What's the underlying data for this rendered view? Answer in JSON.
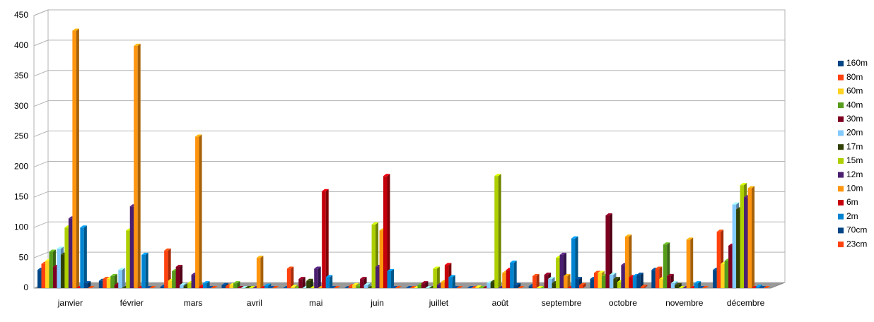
{
  "chart_data": {
    "type": "bar3d",
    "categories": [
      "janvier",
      "février",
      "mars",
      "avril",
      "mai",
      "juin",
      "juillet",
      "août",
      "septembre",
      "octobre",
      "novembre",
      "décembre"
    ],
    "ylim": [
      0,
      450
    ],
    "yticks": [
      0,
      50,
      100,
      150,
      200,
      250,
      300,
      350,
      400,
      450
    ],
    "grid": true,
    "legend": "right",
    "series": [
      {
        "name": "160m",
        "color": "#004586",
        "values": [
          30,
          12,
          2,
          5,
          0,
          0,
          0,
          0,
          3,
          15,
          30,
          30
        ]
      },
      {
        "name": "80m",
        "color": "#ff420e",
        "values": [
          40,
          15,
          62,
          3,
          32,
          3,
          0,
          0,
          20,
          25,
          32,
          93
        ]
      },
      {
        "name": "60m",
        "color": "#ffd320",
        "values": [
          45,
          15,
          12,
          5,
          2,
          5,
          0,
          1,
          0,
          25,
          15,
          40
        ]
      },
      {
        "name": "40m",
        "color": "#579d1c",
        "values": [
          60,
          20,
          28,
          8,
          0,
          3,
          5,
          0,
          0,
          20,
          72,
          45
        ]
      },
      {
        "name": "30m",
        "color": "#7e0021",
        "values": [
          35,
          5,
          35,
          0,
          15,
          15,
          8,
          0,
          22,
          120,
          20,
          70
        ]
      },
      {
        "name": "20m",
        "color": "#83caff",
        "values": [
          65,
          30,
          5,
          0,
          0,
          5,
          0,
          8,
          15,
          22,
          8,
          138
        ]
      },
      {
        "name": "17m",
        "color": "#314004",
        "values": [
          55,
          0,
          3,
          0,
          12,
          0,
          0,
          10,
          8,
          15,
          5,
          130
        ]
      },
      {
        "name": "15m",
        "color": "#aecf00",
        "values": [
          100,
          95,
          8,
          0,
          0,
          105,
          32,
          185,
          50,
          10,
          0,
          170
        ]
      },
      {
        "name": "12m",
        "color": "#4b1f6f",
        "values": [
          115,
          135,
          22,
          0,
          32,
          35,
          5,
          0,
          55,
          38,
          0,
          150
        ]
      },
      {
        "name": "10m",
        "color": "#ff950e",
        "values": [
          425,
          400,
          250,
          50,
          0,
          95,
          10,
          25,
          20,
          85,
          80,
          165
        ]
      },
      {
        "name": "6m",
        "color": "#c5000b",
        "values": [
          0,
          0,
          2,
          0,
          160,
          185,
          38,
          30,
          0,
          18,
          0,
          0
        ]
      },
      {
        "name": "2m",
        "color": "#0084d1",
        "values": [
          100,
          55,
          8,
          4,
          18,
          28,
          18,
          42,
          82,
          20,
          8,
          2
        ]
      },
      {
        "name": "70cm",
        "color": "#004586",
        "values": [
          8,
          0,
          0,
          0,
          0,
          0,
          0,
          5,
          15,
          22,
          0,
          0
        ]
      },
      {
        "name": "23cm",
        "color": "#ff420e",
        "values": [
          0,
          0,
          0,
          0,
          0,
          0,
          0,
          0,
          5,
          2,
          0,
          0
        ]
      }
    ]
  }
}
